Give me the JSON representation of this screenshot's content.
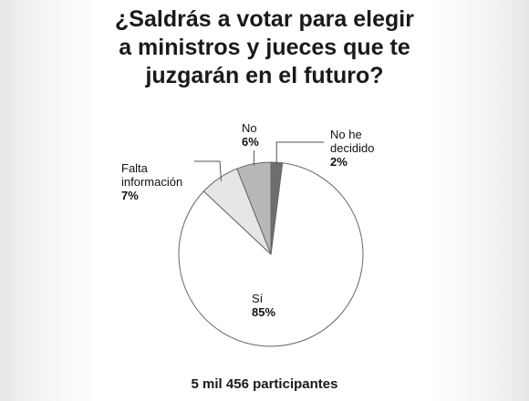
{
  "title_lines": [
    "¿Saldrás a votar para elegir",
    "a ministros y jueces que te",
    "juzgarán en el futuro?"
  ],
  "footer": "5 mil 456 participantes",
  "colors": {
    "si": "#ffffff",
    "falta_informacion": "#e6e6e6",
    "no": "#b8b8b8",
    "no_he_decidido": "#6e6e6e",
    "stroke": "#666666"
  },
  "chart_data": {
    "type": "pie",
    "title": "¿Saldrás a votar para elegir a ministros y jueces que te juzgarán en el futuro?",
    "slices": [
      {
        "label": "Sí",
        "value": 85,
        "display": "85%"
      },
      {
        "label": "Falta información",
        "label_lines": [
          "Falta",
          "información"
        ],
        "value": 7,
        "display": "7%"
      },
      {
        "label": "No",
        "value": 6,
        "display": "6%"
      },
      {
        "label": "No he decidido",
        "label_lines": [
          "No he",
          "decidido"
        ],
        "value": 2,
        "display": "2%"
      }
    ]
  }
}
